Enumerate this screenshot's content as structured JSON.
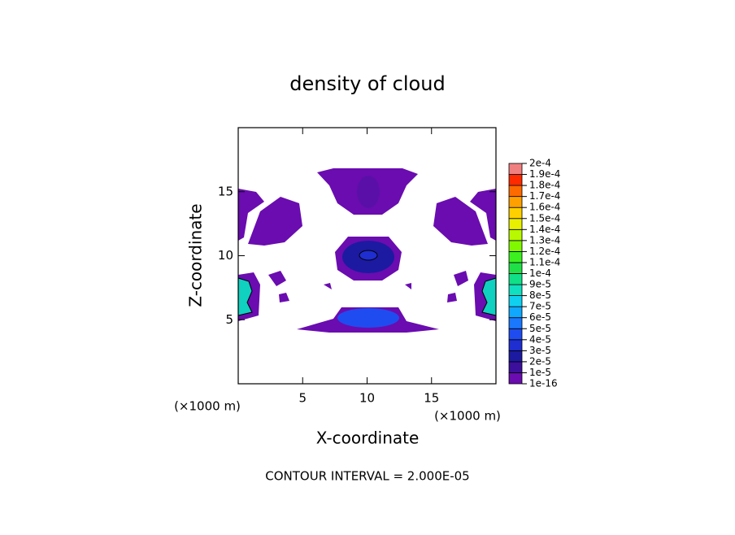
{
  "chart_data": {
    "type": "contour",
    "title": "density of cloud",
    "x_label": "X-coordinate",
    "y_label": "Z-coordinate",
    "x_unit": "(×1000 m)",
    "y_unit": "(×1000 m)",
    "footer": "CONTOUR INTERVAL = 2.000E-05",
    "xlim": [
      0,
      20
    ],
    "xticks": [
      5,
      10,
      15
    ],
    "ylim": [
      0,
      20
    ],
    "yticks": [
      5,
      10,
      15
    ],
    "colorbar": {
      "ticks": [
        {
          "value": 1e-16,
          "label": "1e-16"
        },
        {
          "value": 1e-05,
          "label": "1e-5"
        },
        {
          "value": 2e-05,
          "label": "2e-5"
        },
        {
          "value": 3e-05,
          "label": "3e-5"
        },
        {
          "value": 4e-05,
          "label": "4e-5"
        },
        {
          "value": 5e-05,
          "label": "5e-5"
        },
        {
          "value": 6e-05,
          "label": "6e-5"
        },
        {
          "value": 7e-05,
          "label": "7e-5"
        },
        {
          "value": 8e-05,
          "label": "8e-5"
        },
        {
          "value": 9e-05,
          "label": "9e-5"
        },
        {
          "value": 0.0001,
          "label": "1e-4"
        },
        {
          "value": 0.00011,
          "label": "1.1e-4"
        },
        {
          "value": 0.00012,
          "label": "1.2e-4"
        },
        {
          "value": 0.00013,
          "label": "1.3e-4"
        },
        {
          "value": 0.00014,
          "label": "1.4e-4"
        },
        {
          "value": 0.00015,
          "label": "1.5e-4"
        },
        {
          "value": 0.00016,
          "label": "1.6e-4"
        },
        {
          "value": 0.00017,
          "label": "1.7e-4"
        },
        {
          "value": 0.00018,
          "label": "1.8e-4"
        },
        {
          "value": 0.00019,
          "label": "1.9e-4"
        },
        {
          "value": 0.0002,
          "label": "2e-4"
        }
      ],
      "colors": [
        "#6a0cb0",
        "#3c0f9c",
        "#1c1aa0",
        "#1f2ed0",
        "#1f4cf0",
        "#1a78ff",
        "#10a8ff",
        "#10d0f0",
        "#10e0c0",
        "#10e088",
        "#20e048",
        "#3cf020",
        "#80f800",
        "#b8f800",
        "#e8f000",
        "#ffd000",
        "#ffa000",
        "#ff6a00",
        "#ff2a00",
        "#f08080"
      ]
    }
  }
}
